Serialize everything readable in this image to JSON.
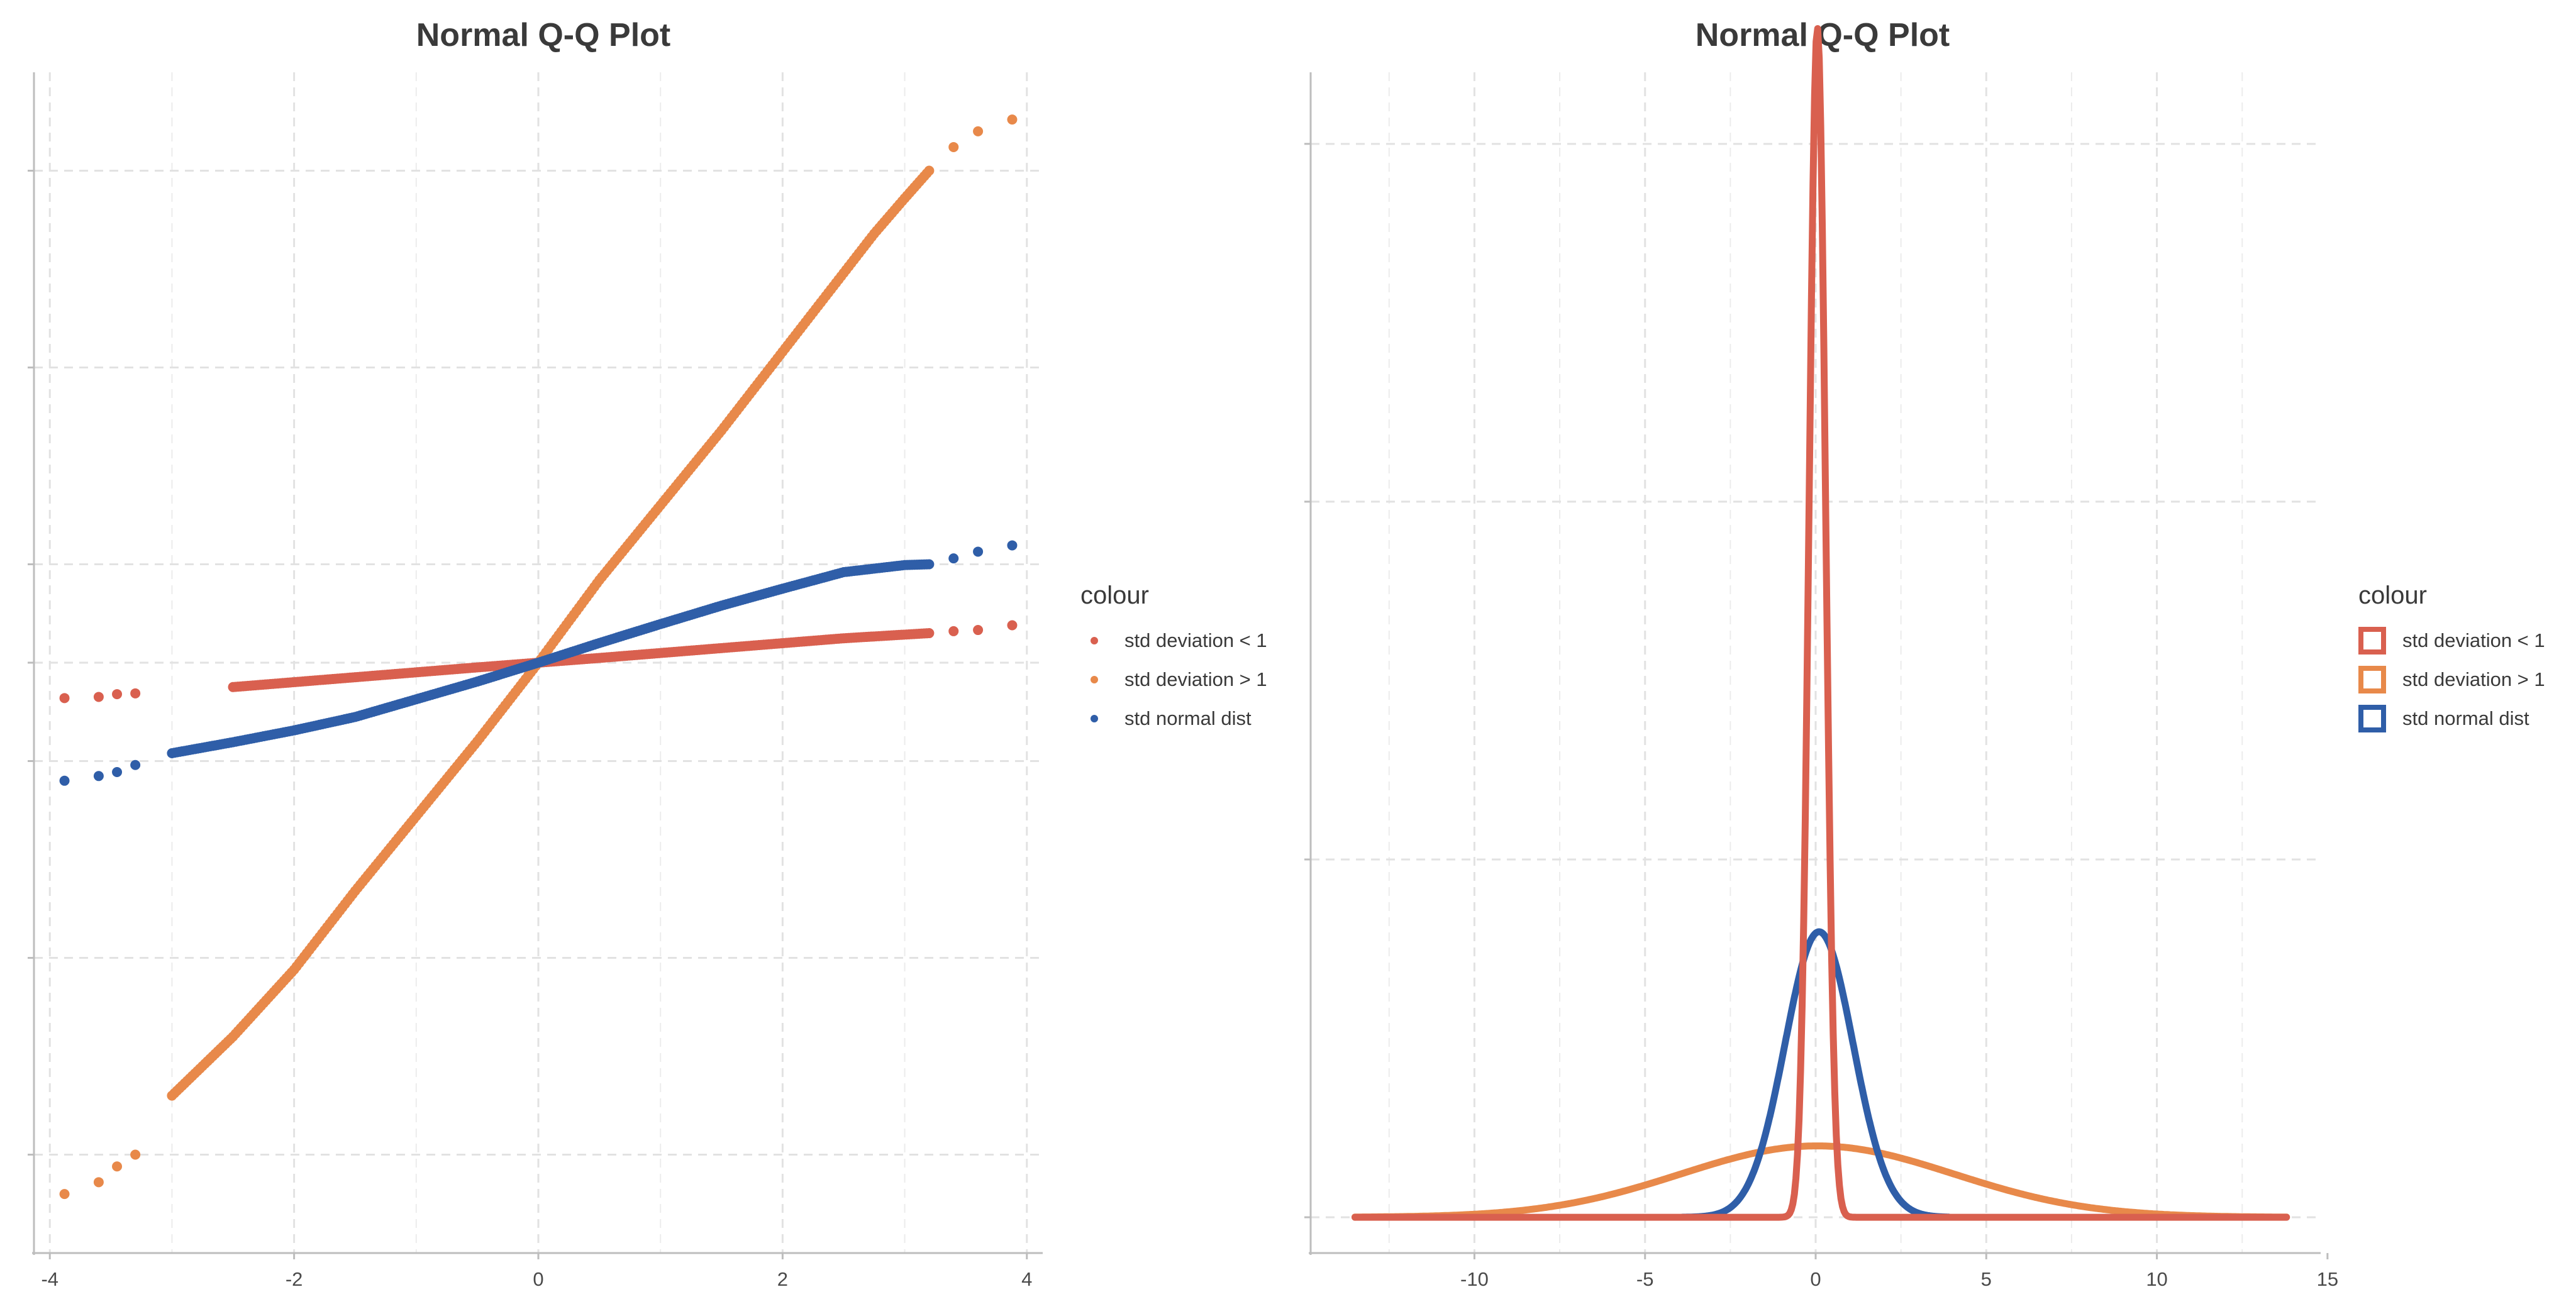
{
  "chart_data": [
    {
      "type": "scatter",
      "title": "Normal Q-Q Plot",
      "xlabel": "",
      "ylabel": "",
      "xlim": [
        -4.13,
        4.13
      ],
      "ylim": [
        -15,
        15
      ],
      "x_ticks": [
        "-4",
        "-2",
        "0",
        "2",
        "4"
      ],
      "grid": true,
      "legend": {
        "title": "colour",
        "position": "right",
        "entries": [
          "std deviation < 1",
          "std deviation > 1",
          "std normal dist"
        ]
      },
      "series": [
        {
          "name": "std deviation < 1",
          "color": "#d9604f",
          "x": [
            -3.88,
            -3.6,
            -3.45,
            -3.3,
            -2.5,
            -1.5,
            -0.5,
            0,
            0.5,
            1.5,
            2.5,
            3.2,
            3.4,
            3.6,
            3.88
          ],
          "y": [
            -0.9,
            -0.87,
            -0.8,
            -0.78,
            -0.62,
            -0.37,
            -0.12,
            0,
            0.12,
            0.37,
            0.62,
            0.75,
            0.8,
            0.83,
            0.95
          ]
        },
        {
          "name": "std deviation > 1",
          "color": "#e8894a",
          "x": [
            -3.88,
            -3.6,
            -3.45,
            -3.3,
            -3.0,
            -2.5,
            -2.0,
            -1.5,
            -1.0,
            -0.5,
            0,
            0.5,
            1.0,
            1.5,
            2.0,
            2.5,
            2.75,
            3.0,
            3.2,
            3.4,
            3.6,
            3.88
          ],
          "y": [
            -13.5,
            -13.2,
            -12.8,
            -12.5,
            -11.0,
            -9.5,
            -7.8,
            -5.8,
            -3.9,
            -2.0,
            0,
            2.1,
            4.0,
            5.9,
            7.9,
            9.9,
            10.9,
            11.8,
            12.5,
            13.1,
            13.5,
            13.8
          ]
        },
        {
          "name": "std normal dist",
          "color": "#2f5ea8",
          "x": [
            -3.88,
            -3.6,
            -3.45,
            -3.3,
            -3.0,
            -2.5,
            -2.0,
            -1.5,
            -1.0,
            -0.5,
            0,
            0.5,
            1.0,
            1.5,
            2.0,
            2.5,
            3.0,
            3.2,
            3.4,
            3.6,
            3.88
          ],
          "y": [
            -3.0,
            -2.88,
            -2.78,
            -2.6,
            -2.3,
            -2.02,
            -1.72,
            -1.38,
            -0.93,
            -0.48,
            0,
            0.5,
            0.98,
            1.45,
            1.88,
            2.3,
            2.48,
            2.5,
            2.65,
            2.82,
            2.98
          ]
        }
      ]
    },
    {
      "type": "line",
      "title": "Normal Q-Q Plot",
      "xlabel": "",
      "ylabel": "",
      "xlim": [
        -14.8,
        14.8
      ],
      "ylim": [
        -0.05,
        1.6
      ],
      "x_ticks": [
        "-10",
        "-5",
        "0",
        "5",
        "10",
        "15"
      ],
      "grid": true,
      "legend": {
        "title": "colour",
        "position": "right",
        "entries": [
          "std deviation < 1",
          "std deviation > 1",
          "std normal dist"
        ]
      },
      "series": [
        {
          "name": "std deviation < 1",
          "color": "#d9604f",
          "shape": "density",
          "mean": 0.05,
          "sd": 0.24,
          "x_range": [
            -13.5,
            13.8
          ]
        },
        {
          "name": "std deviation > 1",
          "color": "#e8894a",
          "shape": "density",
          "mean": 0.05,
          "sd": 4.0,
          "x_range": [
            -13.5,
            13.8
          ]
        },
        {
          "name": "std normal dist",
          "color": "#2f5ea8",
          "shape": "density",
          "mean": 0.1,
          "sd": 1.0,
          "x_range": [
            -3.9,
            3.9
          ]
        }
      ]
    }
  ]
}
